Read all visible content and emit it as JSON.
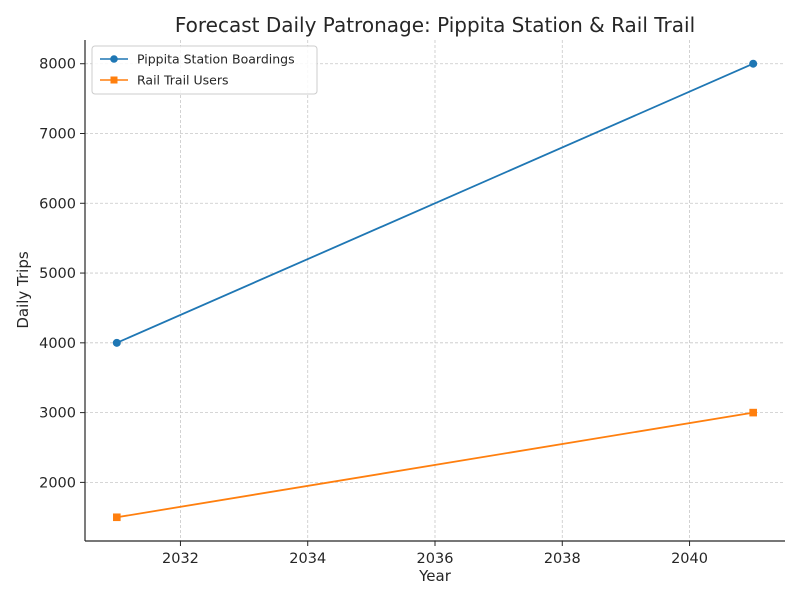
{
  "chart_data": {
    "type": "line",
    "title": "Forecast Daily Patronage: Pippita Station & Rail Trail",
    "xlabel": "Year",
    "ylabel": "Daily Trips",
    "x": [
      2031,
      2041
    ],
    "xlim": [
      2030.5,
      2041.5
    ],
    "ylim": [
      1160,
      8340
    ],
    "xticks": [
      2032,
      2034,
      2036,
      2038,
      2040
    ],
    "yticks": [
      2000,
      3000,
      4000,
      5000,
      6000,
      7000,
      8000
    ],
    "grid": true,
    "legend_position": "upper-left",
    "series": [
      {
        "name": "Pippita Station Boardings",
        "values": [
          4000,
          8000
        ],
        "color": "#1f77b4",
        "marker": "circle"
      },
      {
        "name": "Rail Trail Users",
        "values": [
          1500,
          3000
        ],
        "color": "#ff7f0e",
        "marker": "square"
      }
    ]
  }
}
